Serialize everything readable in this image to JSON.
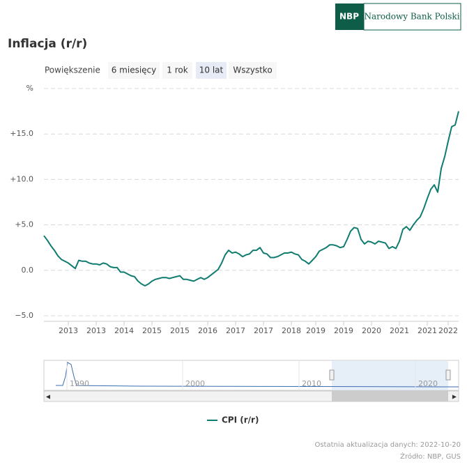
{
  "ui": {
    "logo": "NBP",
    "bank_name": "Narodowy Bank Polski",
    "zoom_label": "Powiększenie",
    "buttons": [
      "6 miesięcy",
      "1 rok",
      "10 lat",
      "Wszystko"
    ],
    "selected_button": 2,
    "navigator_labels": [
      "1990",
      "2000",
      "2010",
      "2020"
    ],
    "footer": [
      "Ostatnia aktualizacja danych: 2022-10-20",
      "Źródło: NBP, GUS"
    ]
  },
  "chart_data": {
    "type": "line",
    "title": "Inflacja (r/r)",
    "categories": [
      null,
      null,
      null,
      null,
      null,
      null,
      null,
      "2013",
      null,
      null,
      null,
      null,
      null,
      null,
      null,
      "2013",
      null,
      null,
      null,
      null,
      null,
      null,
      null,
      "2014",
      null,
      null,
      null,
      null,
      null,
      null,
      null,
      "2015",
      null,
      null,
      null,
      null,
      null,
      null,
      null,
      "2015",
      null,
      null,
      null,
      null,
      null,
      null,
      null,
      "2016",
      null,
      null,
      null,
      null,
      null,
      null,
      null,
      "2017",
      null,
      null,
      null,
      null,
      null,
      null,
      null,
      "2017",
      null,
      null,
      null,
      null,
      null,
      null,
      null,
      "2018",
      null,
      null,
      null,
      null,
      null,
      null,
      "2019",
      null,
      null,
      null,
      null,
      null,
      null,
      null,
      "2019",
      null,
      null,
      null,
      null,
      null,
      null,
      null,
      "2020",
      null,
      null,
      null,
      null,
      null,
      null,
      null,
      "2021",
      null,
      null,
      null,
      null,
      null,
      null,
      null,
      "2021",
      null,
      null,
      null,
      null,
      null,
      "2022",
      null,
      null,
      null
    ],
    "series": [
      {
        "name": "CPI (r/r)",
        "color": "#0f7c6f",
        "values": [
          3.8,
          3.3,
          2.7,
          2.2,
          1.6,
          1.2,
          1.0,
          0.8,
          0.5,
          0.2,
          1.1,
          1.0,
          1.0,
          0.8,
          0.7,
          0.7,
          0.6,
          0.8,
          0.7,
          0.4,
          0.3,
          0.3,
          -0.2,
          -0.2,
          -0.4,
          -0.6,
          -0.7,
          -1.2,
          -1.5,
          -1.7,
          -1.5,
          -1.2,
          -1.0,
          -0.9,
          -0.8,
          -0.8,
          -0.9,
          -0.8,
          -0.7,
          -0.6,
          -1.0,
          -1.0,
          -1.1,
          -1.2,
          -1.0,
          -0.8,
          -1.0,
          -0.8,
          -0.5,
          -0.2,
          0.1,
          0.8,
          1.7,
          2.2,
          1.9,
          2.0,
          1.8,
          1.5,
          1.7,
          1.8,
          2.2,
          2.2,
          2.5,
          1.9,
          1.8,
          1.4,
          1.4,
          1.5,
          1.7,
          1.9,
          1.9,
          2.0,
          1.8,
          1.7,
          1.2,
          1.0,
          0.7,
          1.1,
          1.5,
          2.1,
          2.3,
          2.5,
          2.8,
          2.8,
          2.7,
          2.5,
          2.6,
          3.4,
          4.3,
          4.7,
          4.6,
          3.4,
          2.9,
          3.2,
          3.1,
          2.9,
          3.2,
          3.1,
          3.0,
          2.4,
          2.6,
          2.4,
          3.2,
          4.5,
          4.8,
          4.4,
          5.0,
          5.5,
          5.9,
          6.8,
          7.9,
          8.9,
          9.4,
          8.6,
          11.2,
          12.5,
          14.2,
          15.8,
          16.0,
          17.5
        ]
      }
    ],
    "ylim": [
      -5,
      20
    ],
    "yticks": [
      {
        "value": -5,
        "label": "−5.0"
      },
      {
        "value": 0,
        "label": "0.0"
      },
      {
        "value": 5,
        "label": "+5.0"
      },
      {
        "value": 10,
        "label": "+10.0"
      },
      {
        "value": 15,
        "label": "+15.0"
      },
      {
        "value": 20,
        "label": "%"
      }
    ],
    "grid": true
  }
}
